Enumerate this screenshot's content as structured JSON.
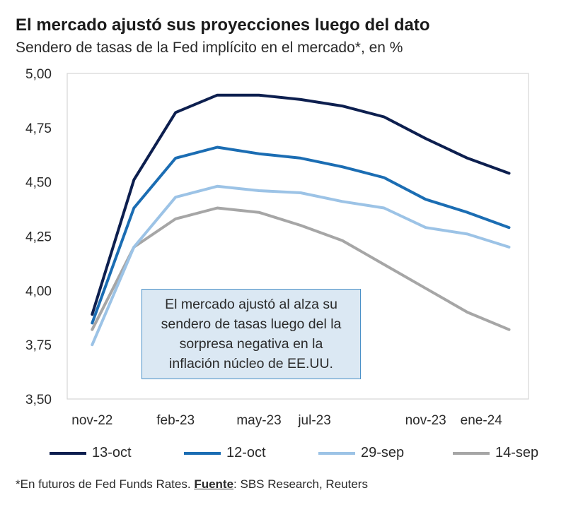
{
  "header": {
    "title": "El mercado ajustó sus proyecciones luego del dato",
    "subtitle": "Sendero de tasas de la Fed implícito en el mercado*, en %"
  },
  "annotation": {
    "text": "El mercado ajustó al alza su\nsendero de tasas luego del la\nsorpresa negativa en la\ninflación núcleo de EE.UU."
  },
  "footnote": {
    "prefix": "*En futuros de Fed Funds Rates. ",
    "source_label": "Fuente",
    "source_text": ": SBS Research, Reuters"
  },
  "chart_data": {
    "type": "line",
    "title": "El mercado ajustó sus proyecciones luego del dato",
    "ylabel": "en %",
    "ylim": [
      3.5,
      5.0
    ],
    "yticks": [
      "5,00",
      "4,75",
      "4,50",
      "4,25",
      "4,00",
      "3,75",
      "3,50"
    ],
    "ytick_values": [
      5.0,
      4.75,
      4.5,
      4.25,
      4.0,
      3.75,
      3.5
    ],
    "x": [
      0,
      1,
      2,
      3,
      4,
      5,
      6,
      7,
      8,
      9,
      10,
      11,
      12,
      13,
      14
    ],
    "xtick_labels": [
      {
        "x": 0,
        "label": "nov-22"
      },
      {
        "x": 3,
        "label": "feb-23"
      },
      {
        "x": 6,
        "label": "may-23"
      },
      {
        "x": 8,
        "label": "jul-23"
      },
      {
        "x": 12,
        "label": "nov-23"
      },
      {
        "x": 14,
        "label": "ene-24"
      }
    ],
    "series": [
      {
        "name": "13-oct",
        "color": "#0d1f4f",
        "x": [
          0,
          1.5,
          3,
          4.5,
          6,
          7.5,
          9,
          10.5,
          12,
          13.5,
          15
        ],
        "values": [
          3.89,
          4.51,
          4.82,
          4.9,
          4.9,
          4.88,
          4.85,
          4.8,
          4.7,
          4.61,
          4.54
        ]
      },
      {
        "name": "12-oct",
        "color": "#1b6db3",
        "x": [
          0,
          1.5,
          3,
          4.5,
          6,
          7.5,
          9,
          10.5,
          12,
          13.5,
          15
        ],
        "values": [
          3.85,
          4.38,
          4.61,
          4.66,
          4.63,
          4.61,
          4.57,
          4.52,
          4.42,
          4.36,
          4.29
        ]
      },
      {
        "name": "29-sep",
        "color": "#9cc3e6",
        "x": [
          0,
          1.5,
          3,
          4.5,
          6,
          7.5,
          9,
          10.5,
          12,
          13.5,
          15
        ],
        "values": [
          3.75,
          4.2,
          4.43,
          4.48,
          4.46,
          4.45,
          4.41,
          4.38,
          4.29,
          4.26,
          4.2
        ]
      },
      {
        "name": "14-sep",
        "color": "#a6a6a6",
        "x": [
          0,
          1.5,
          3,
          4.5,
          6,
          7.5,
          9,
          10.5,
          12,
          13.5,
          15
        ],
        "values": [
          3.82,
          4.2,
          4.33,
          4.38,
          4.36,
          4.3,
          4.23,
          4.12,
          4.01,
          3.9,
          3.82
        ]
      }
    ],
    "legend_position": "bottom"
  }
}
